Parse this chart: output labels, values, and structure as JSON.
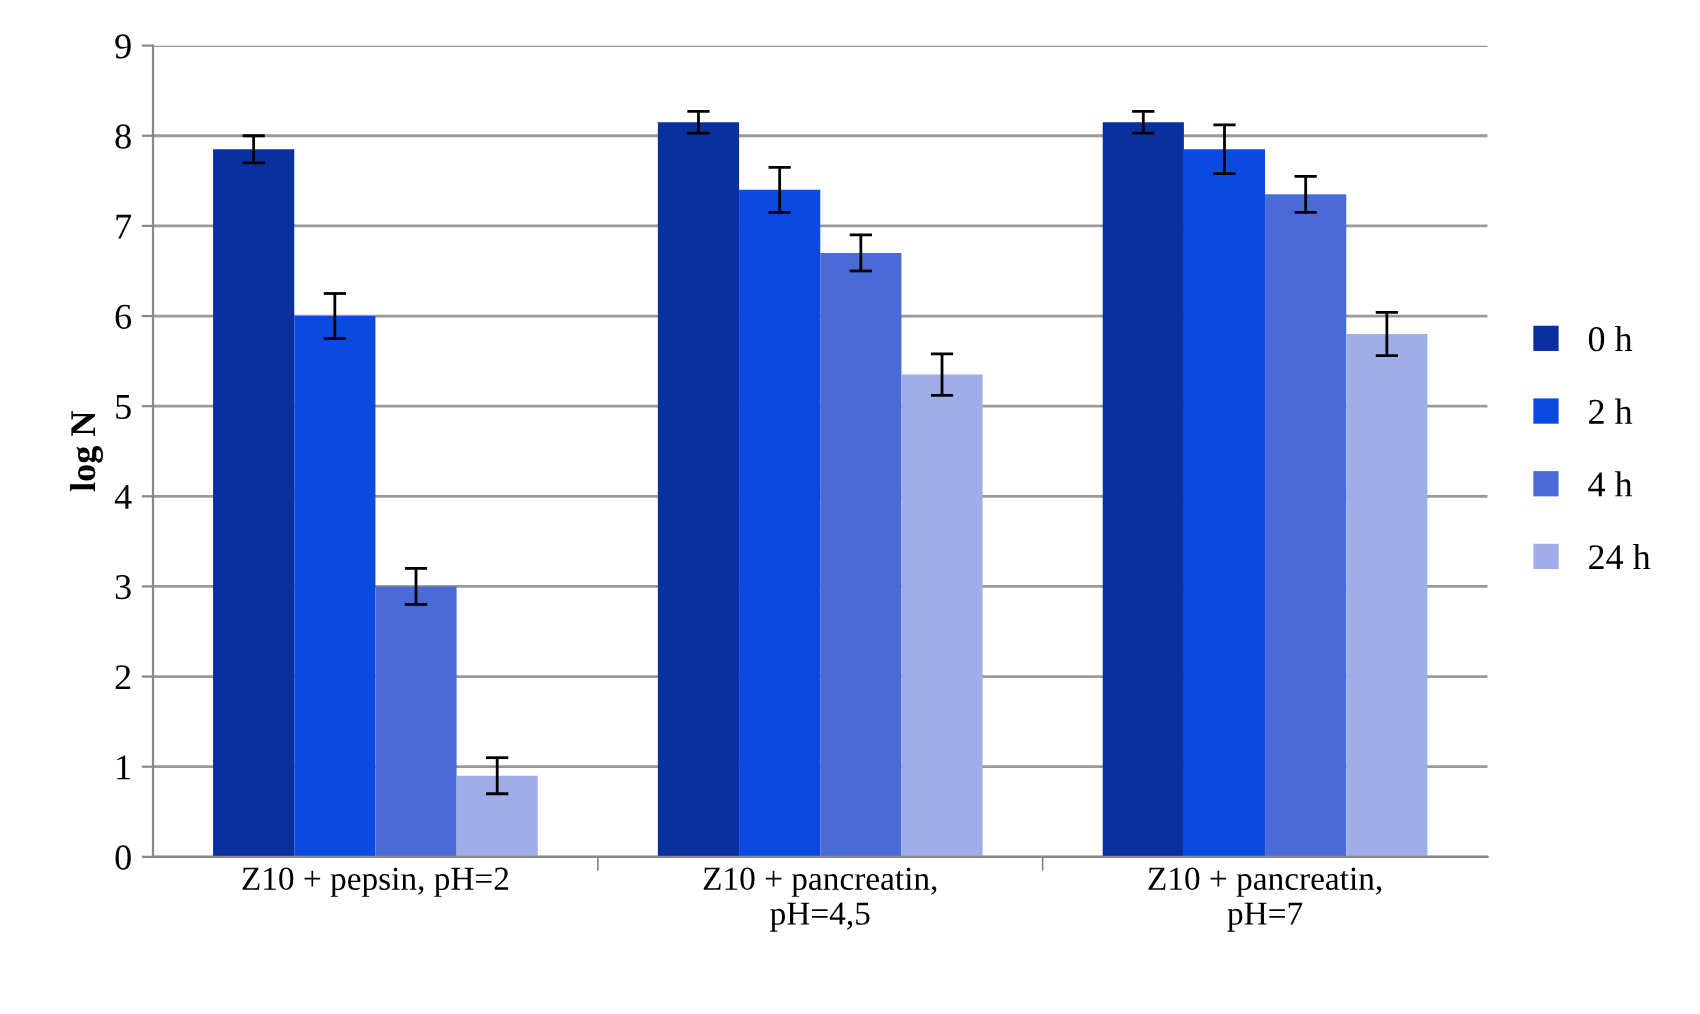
{
  "chart_data": {
    "type": "bar",
    "ylabel": "log N",
    "categories": [
      "Z10 + pepsin, pH=2",
      "Z10 + pancreatin,\npH=4,5",
      "Z10 + pancreatin,\npH=7"
    ],
    "series": [
      {
        "name": "0 h",
        "color": "#0a2f9e",
        "values": [
          7.85,
          8.15,
          8.15
        ],
        "errors": [
          0.15,
          0.12,
          0.12
        ]
      },
      {
        "name": "2 h",
        "color": "#0a4ae0",
        "values": [
          6.0,
          7.4,
          7.85
        ],
        "errors": [
          0.25,
          0.25,
          0.27
        ]
      },
      {
        "name": "4 h",
        "color": "#4a6ad8",
        "values": [
          3.0,
          6.7,
          7.35
        ],
        "errors": [
          0.2,
          0.2,
          0.2
        ]
      },
      {
        "name": "24 h",
        "color": "#a0aee8",
        "values": [
          0.9,
          5.35,
          5.8
        ],
        "errors": [
          0.2,
          0.23,
          0.24
        ]
      }
    ],
    "ylim": [
      0,
      9
    ],
    "yticks": [
      0,
      1,
      2,
      3,
      4,
      5,
      6,
      7,
      8,
      9
    ],
    "grid": "y",
    "legend": "right"
  }
}
